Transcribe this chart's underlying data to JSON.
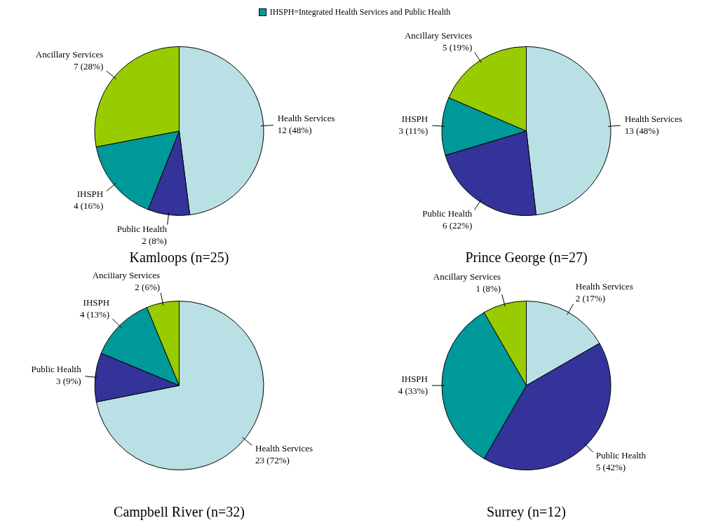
{
  "chart_data": [
    {
      "type": "pie",
      "title": "Kamloops (n=25)",
      "annotations": [
        "IHSPH=Integrated Health Services and Public Health"
      ],
      "categories": [
        "Health Services",
        "Public Health",
        "IHSPH",
        "Ancillary Services"
      ],
      "values": [
        12,
        2,
        4,
        7
      ],
      "value_labels": [
        "12 (48%)",
        "2 (8%)",
        "4 (16%)",
        "7 (28%)"
      ],
      "colors": [
        "#b9e0e4",
        "#333399",
        "#009999",
        "#99cc00"
      ]
    },
    {
      "type": "pie",
      "title": "Prince George (n=27)",
      "categories": [
        "Health Services",
        "Public Health",
        "IHSPH",
        "Ancillary Services"
      ],
      "values": [
        13,
        6,
        3,
        5
      ],
      "value_labels": [
        "13 (48%)",
        "6 (22%)",
        "3 (11%)",
        "5 (19%)"
      ],
      "colors": [
        "#b9e0e4",
        "#333399",
        "#009999",
        "#99cc00"
      ]
    },
    {
      "type": "pie",
      "title": "Campbell River (n=32)",
      "categories": [
        "Health Services",
        "Public Health",
        "IHSPH",
        "Ancillary Services"
      ],
      "values": [
        23,
        3,
        4,
        2
      ],
      "value_labels": [
        "23 (72%)",
        "3 (9%)",
        "4 (13%)",
        "2 (6%)"
      ],
      "colors": [
        "#b9e0e4",
        "#333399",
        "#009999",
        "#99cc00"
      ]
    },
    {
      "type": "pie",
      "title": "Surrey (n=12)",
      "categories": [
        "Health Services",
        "Public Health",
        "IHSPH",
        "Ancillary Services"
      ],
      "values": [
        2,
        5,
        4,
        1
      ],
      "value_labels": [
        "2 (17%)",
        "5 (42%)",
        "4 (33%)",
        "1 (8%)"
      ],
      "colors": [
        "#b9e0e4",
        "#333399",
        "#009999",
        "#99cc00"
      ]
    }
  ]
}
